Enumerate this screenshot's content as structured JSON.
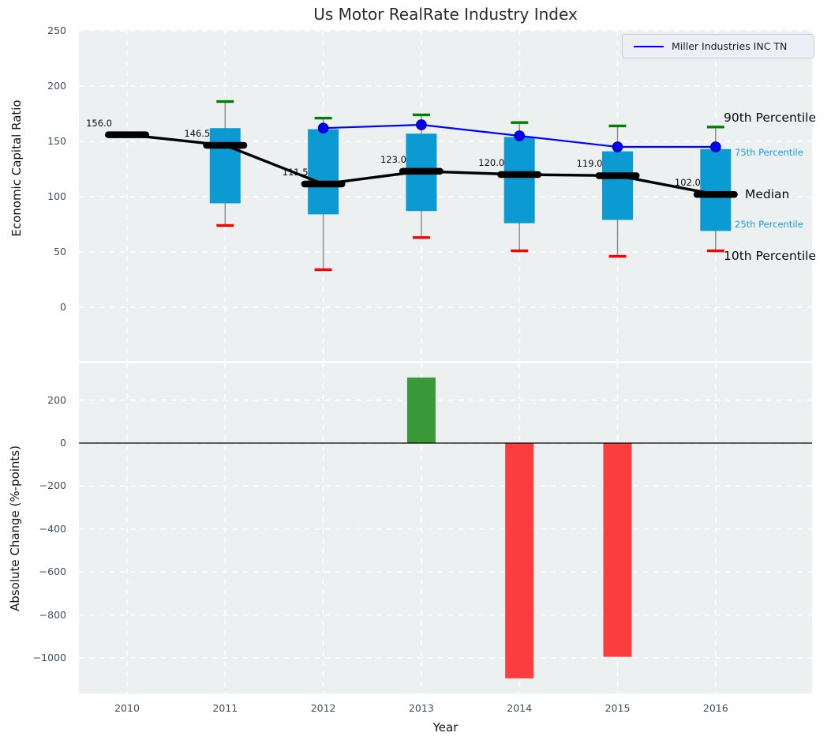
{
  "title": "Us Motor RealRate Industry Index",
  "legend": {
    "label": "Miller Industries INC TN"
  },
  "annotations": {
    "p90": "90th Percentile",
    "p75": "75th Percentile",
    "median": "Median",
    "p25": "25th Percentile",
    "p10": "10th Percentile"
  },
  "colors": {
    "axes_background": "#ecf0f1",
    "grid": "#ffffff",
    "box_fill": "#0c9ad2",
    "company_line": "#0000ff",
    "company_dot_fill": "#0202f0",
    "company_dot_edge": "#0000a8",
    "median": "#000000",
    "whisker": "#888888",
    "cap_top": "#008000",
    "cap_bottom": "#ff0000",
    "bar_positive": "#3a9a3a",
    "bar_negative": "#fb3d3d",
    "tick_text": "#3e4e60",
    "percentile_text": "#1a9cd8",
    "zero_line": "#000000"
  },
  "chart_data": [
    {
      "type": "boxplot+line",
      "title": "Us Motor RealRate Industry Index",
      "xlabel": "",
      "ylabel": "Economic Capital Ratio",
      "yticks": [
        250,
        200,
        150,
        100,
        50,
        0
      ],
      "ylim": [
        -49,
        251
      ],
      "grid": true,
      "legend_position": "upper right",
      "categories": [
        2010,
        2011,
        2012,
        2013,
        2014,
        2015,
        2016
      ],
      "series": [
        {
          "name": "Median",
          "values": [
            156.0,
            146.5,
            111.5,
            123.0,
            120.0,
            119.0,
            102.0
          ],
          "labels": [
            "156.0",
            "146.5",
            "111.5",
            "123.0",
            "120.0",
            "119.0",
            "102.0"
          ]
        },
        {
          "name": "90th Percentile",
          "values": [
            null,
            186,
            171,
            174,
            167,
            164,
            163
          ]
        },
        {
          "name": "75th Percentile",
          "values": [
            null,
            162,
            161,
            157,
            154,
            141,
            143
          ]
        },
        {
          "name": "25th Percentile",
          "values": [
            null,
            94,
            84,
            87,
            76,
            79,
            69
          ]
        },
        {
          "name": "10th Percentile",
          "values": [
            null,
            74,
            34,
            63,
            51,
            46,
            51
          ]
        },
        {
          "name": "Miller Industries INC TN",
          "values": [
            null,
            null,
            162,
            165,
            155,
            145,
            145
          ]
        }
      ]
    },
    {
      "type": "bar",
      "xlabel": "Year",
      "ylabel": "Absolute Change (%-points)",
      "yticks": [
        200,
        0,
        -200,
        -400,
        -600,
        -800,
        -1000
      ],
      "ylim": [
        -1165,
        371
      ],
      "grid": true,
      "categories": [
        2010,
        2011,
        2012,
        2013,
        2014,
        2015,
        2016
      ],
      "values": [
        null,
        null,
        null,
        305,
        -1095,
        -995,
        null
      ]
    }
  ]
}
